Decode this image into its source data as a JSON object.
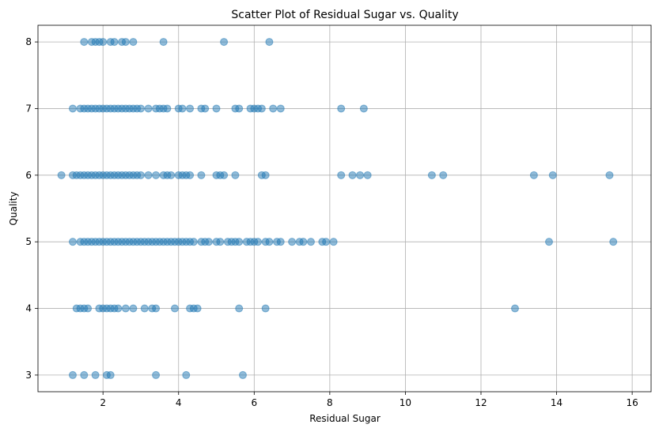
{
  "chart_data": {
    "type": "scatter",
    "title": "Scatter Plot of Residual Sugar vs. Quality",
    "xlabel": "Residual Sugar",
    "ylabel": "Quality",
    "xlim": [
      0.28,
      16.5
    ],
    "ylim": [
      2.75,
      8.25
    ],
    "xticks": [
      2,
      4,
      6,
      8,
      10,
      12,
      14,
      16
    ],
    "yticks": [
      3,
      4,
      5,
      6,
      7,
      8
    ],
    "grid": true,
    "marker_color": "#1f77b4",
    "marker_alpha": 0.5,
    "series": [
      {
        "points": [
          [
            1.2,
            3
          ],
          [
            1.5,
            3
          ],
          [
            1.8,
            3
          ],
          [
            2.1,
            3
          ],
          [
            2.2,
            3
          ],
          [
            3.4,
            3
          ],
          [
            4.2,
            3
          ],
          [
            5.7,
            3
          ],
          [
            1.3,
            4
          ],
          [
            1.4,
            4
          ],
          [
            1.5,
            4
          ],
          [
            1.6,
            4
          ],
          [
            1.9,
            4
          ],
          [
            2.0,
            4
          ],
          [
            2.1,
            4
          ],
          [
            2.2,
            4
          ],
          [
            2.3,
            4
          ],
          [
            2.4,
            4
          ],
          [
            2.6,
            4
          ],
          [
            2.8,
            4
          ],
          [
            3.1,
            4
          ],
          [
            3.3,
            4
          ],
          [
            3.4,
            4
          ],
          [
            3.9,
            4
          ],
          [
            4.3,
            4
          ],
          [
            4.4,
            4
          ],
          [
            4.5,
            4
          ],
          [
            5.6,
            4
          ],
          [
            6.3,
            4
          ],
          [
            12.9,
            4
          ],
          [
            1.5,
            8
          ],
          [
            1.7,
            8
          ],
          [
            1.8,
            8
          ],
          [
            1.9,
            8
          ],
          [
            2.0,
            8
          ],
          [
            2.2,
            8
          ],
          [
            2.3,
            8
          ],
          [
            2.5,
            8
          ],
          [
            2.6,
            8
          ],
          [
            2.8,
            8
          ],
          [
            3.6,
            8
          ],
          [
            5.2,
            8
          ],
          [
            6.4,
            8
          ],
          [
            1.2,
            7
          ],
          [
            1.4,
            7
          ],
          [
            1.5,
            7
          ],
          [
            1.6,
            7
          ],
          [
            1.7,
            7
          ],
          [
            1.8,
            7
          ],
          [
            1.9,
            7
          ],
          [
            2.0,
            7
          ],
          [
            2.1,
            7
          ],
          [
            2.2,
            7
          ],
          [
            2.3,
            7
          ],
          [
            2.4,
            7
          ],
          [
            2.5,
            7
          ],
          [
            2.6,
            7
          ],
          [
            2.7,
            7
          ],
          [
            2.8,
            7
          ],
          [
            2.9,
            7
          ],
          [
            3.0,
            7
          ],
          [
            3.2,
            7
          ],
          [
            3.4,
            7
          ],
          [
            3.5,
            7
          ],
          [
            3.6,
            7
          ],
          [
            3.7,
            7
          ],
          [
            4.0,
            7
          ],
          [
            4.1,
            7
          ],
          [
            4.3,
            7
          ],
          [
            4.6,
            7
          ],
          [
            4.7,
            7
          ],
          [
            5.0,
            7
          ],
          [
            5.5,
            7
          ],
          [
            5.6,
            7
          ],
          [
            5.9,
            7
          ],
          [
            6.0,
            7
          ],
          [
            6.1,
            7
          ],
          [
            6.2,
            7
          ],
          [
            6.5,
            7
          ],
          [
            6.7,
            7
          ],
          [
            8.3,
            7
          ],
          [
            8.9,
            7
          ],
          [
            0.9,
            6
          ],
          [
            1.2,
            6
          ],
          [
            1.3,
            6
          ],
          [
            1.4,
            6
          ],
          [
            1.5,
            6
          ],
          [
            1.6,
            6
          ],
          [
            1.7,
            6
          ],
          [
            1.8,
            6
          ],
          [
            1.9,
            6
          ],
          [
            2.0,
            6
          ],
          [
            2.1,
            6
          ],
          [
            2.2,
            6
          ],
          [
            2.3,
            6
          ],
          [
            2.4,
            6
          ],
          [
            2.5,
            6
          ],
          [
            2.6,
            6
          ],
          [
            2.7,
            6
          ],
          [
            2.8,
            6
          ],
          [
            2.9,
            6
          ],
          [
            3.0,
            6
          ],
          [
            3.2,
            6
          ],
          [
            3.4,
            6
          ],
          [
            3.6,
            6
          ],
          [
            3.7,
            6
          ],
          [
            3.8,
            6
          ],
          [
            4.0,
            6
          ],
          [
            4.1,
            6
          ],
          [
            4.2,
            6
          ],
          [
            4.3,
            6
          ],
          [
            4.6,
            6
          ],
          [
            5.0,
            6
          ],
          [
            5.1,
            6
          ],
          [
            5.2,
            6
          ],
          [
            5.5,
            6
          ],
          [
            6.2,
            6
          ],
          [
            6.3,
            6
          ],
          [
            8.3,
            6
          ],
          [
            8.6,
            6
          ],
          [
            8.8,
            6
          ],
          [
            9.0,
            6
          ],
          [
            10.7,
            6
          ],
          [
            11.0,
            6
          ],
          [
            13.4,
            6
          ],
          [
            13.9,
            6
          ],
          [
            15.4,
            6
          ],
          [
            1.2,
            5
          ],
          [
            1.4,
            5
          ],
          [
            1.5,
            5
          ],
          [
            1.6,
            5
          ],
          [
            1.7,
            5
          ],
          [
            1.8,
            5
          ],
          [
            1.9,
            5
          ],
          [
            2.0,
            5
          ],
          [
            2.1,
            5
          ],
          [
            2.2,
            5
          ],
          [
            2.3,
            5
          ],
          [
            2.4,
            5
          ],
          [
            2.5,
            5
          ],
          [
            2.6,
            5
          ],
          [
            2.7,
            5
          ],
          [
            2.8,
            5
          ],
          [
            2.9,
            5
          ],
          [
            3.0,
            5
          ],
          [
            3.1,
            5
          ],
          [
            3.2,
            5
          ],
          [
            3.3,
            5
          ],
          [
            3.4,
            5
          ],
          [
            3.5,
            5
          ],
          [
            3.6,
            5
          ],
          [
            3.7,
            5
          ],
          [
            3.8,
            5
          ],
          [
            3.9,
            5
          ],
          [
            4.0,
            5
          ],
          [
            4.1,
            5
          ],
          [
            4.2,
            5
          ],
          [
            4.3,
            5
          ],
          [
            4.4,
            5
          ],
          [
            4.6,
            5
          ],
          [
            4.7,
            5
          ],
          [
            4.8,
            5
          ],
          [
            5.0,
            5
          ],
          [
            5.1,
            5
          ],
          [
            5.3,
            5
          ],
          [
            5.4,
            5
          ],
          [
            5.5,
            5
          ],
          [
            5.6,
            5
          ],
          [
            5.8,
            5
          ],
          [
            5.9,
            5
          ],
          [
            6.0,
            5
          ],
          [
            6.1,
            5
          ],
          [
            6.3,
            5
          ],
          [
            6.4,
            5
          ],
          [
            6.6,
            5
          ],
          [
            6.7,
            5
          ],
          [
            7.0,
            5
          ],
          [
            7.2,
            5
          ],
          [
            7.3,
            5
          ],
          [
            7.5,
            5
          ],
          [
            7.8,
            5
          ],
          [
            7.9,
            5
          ],
          [
            8.1,
            5
          ],
          [
            13.8,
            5
          ],
          [
            15.5,
            5
          ]
        ]
      }
    ]
  }
}
